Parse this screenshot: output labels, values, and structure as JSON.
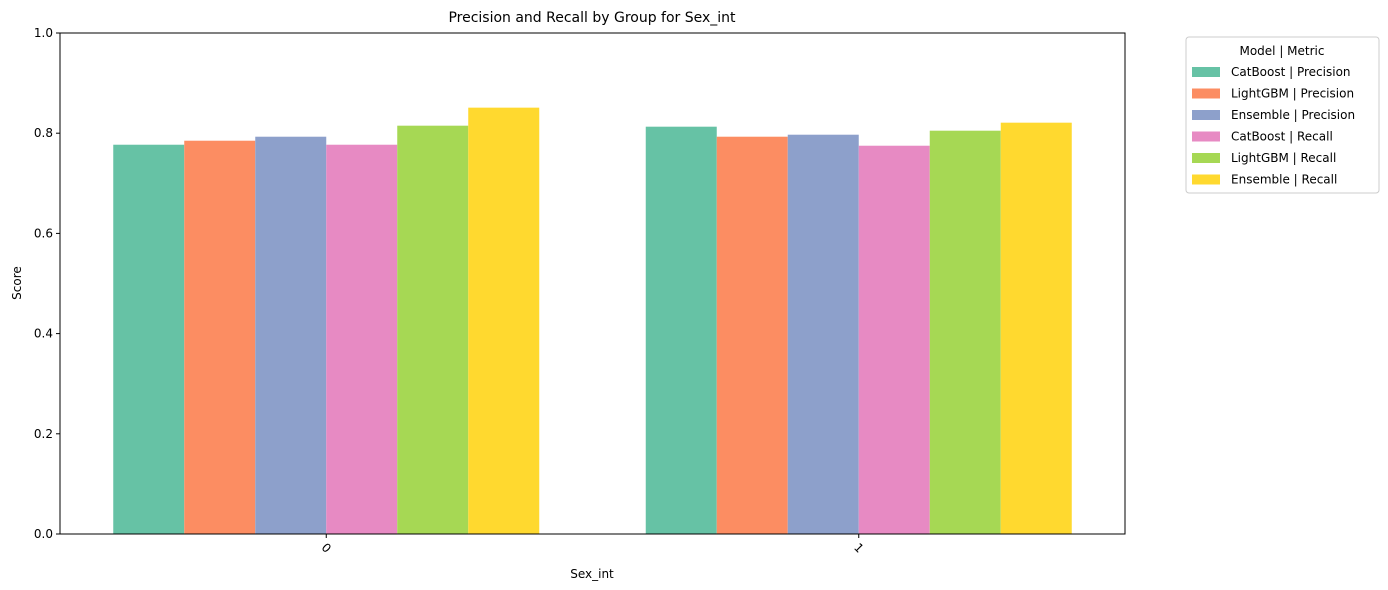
{
  "chart_data": {
    "type": "bar",
    "title": "Precision and Recall by Group for Sex_int",
    "xlabel": "Sex_int",
    "ylabel": "Score",
    "categories": [
      "0",
      "1"
    ],
    "ylim": [
      0,
      1.0
    ],
    "yticks": [
      "0.0",
      "0.2",
      "0.4",
      "0.6",
      "0.8",
      "1.0"
    ],
    "grid": false,
    "legend": {
      "title": "Model | Metric",
      "placement": "outside-top-right"
    },
    "series": [
      {
        "name": "CatBoost | Precision",
        "color": "#66c2a5",
        "values": [
          0.777,
          0.813
        ]
      },
      {
        "name": "LightGBM | Precision",
        "color": "#fc8d62",
        "values": [
          0.785,
          0.793
        ]
      },
      {
        "name": "Ensemble | Precision",
        "color": "#8da0cb",
        "values": [
          0.793,
          0.797
        ]
      },
      {
        "name": "CatBoost | Recall",
        "color": "#e78ac3",
        "values": [
          0.777,
          0.775
        ]
      },
      {
        "name": "LightGBM | Recall",
        "color": "#a6d854",
        "values": [
          0.815,
          0.805
        ]
      },
      {
        "name": "Ensemble | Recall",
        "color": "#ffd92f",
        "values": [
          0.851,
          0.821
        ]
      }
    ]
  }
}
